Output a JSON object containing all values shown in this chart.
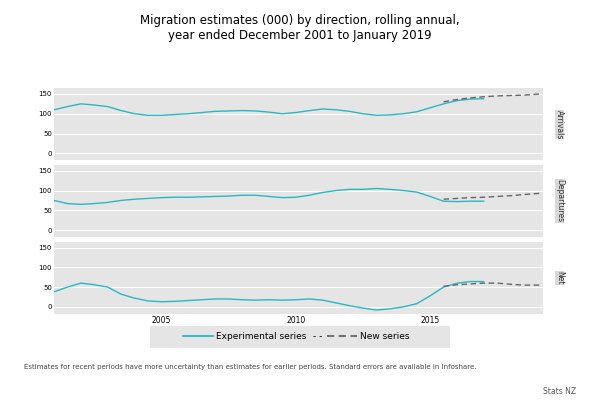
{
  "title": "Migration estimates (000) by direction, rolling annual,\nyear ended December 2001 to January 2019",
  "title_fontsize": 8.5,
  "panels": [
    "Arrivals",
    "Departures",
    "Net"
  ],
  "bg_color": "#E5E5E5",
  "label_bg_color": "#D8D8D8",
  "line_color": "#29B8C3",
  "new_series_color": "#666666",
  "xlim": [
    2001.0,
    2019.2
  ],
  "xticks": [
    2005,
    2010,
    2015
  ],
  "yticks": [
    0,
    50,
    100,
    150
  ],
  "footnote": "Estimates for recent periods have more uncertainty than estimates for earlier periods. Standard errors are available in Infoshare.",
  "source": "Stats NZ",
  "legend_label_exp": "Experimental series",
  "legend_label_new": "New series",
  "arrivals_exp_x": [
    2001.0,
    2001.5,
    2002.0,
    2002.5,
    2003.0,
    2003.5,
    2004.0,
    2004.5,
    2005.0,
    2005.5,
    2006.0,
    2006.5,
    2007.0,
    2007.5,
    2008.0,
    2008.5,
    2009.0,
    2009.5,
    2010.0,
    2010.5,
    2011.0,
    2011.5,
    2012.0,
    2012.5,
    2013.0,
    2013.5,
    2014.0,
    2014.5,
    2015.0,
    2015.5,
    2016.0,
    2016.5,
    2017.0
  ],
  "arrivals_exp_y": [
    110,
    118,
    125,
    122,
    118,
    108,
    100,
    96,
    96,
    98,
    100,
    103,
    106,
    107,
    108,
    107,
    104,
    100,
    103,
    108,
    112,
    110,
    106,
    100,
    96,
    97,
    100,
    105,
    115,
    125,
    133,
    137,
    138
  ],
  "arrivals_new_x": [
    2015.5,
    2016.0,
    2016.5,
    2017.0,
    2017.5,
    2018.0,
    2018.5,
    2019.1
  ],
  "arrivals_new_y": [
    130,
    136,
    140,
    143,
    145,
    146,
    147,
    150
  ],
  "departures_exp_x": [
    2001.0,
    2001.5,
    2002.0,
    2002.5,
    2003.0,
    2003.5,
    2004.0,
    2004.5,
    2005.0,
    2005.5,
    2006.0,
    2006.5,
    2007.0,
    2007.5,
    2008.0,
    2008.5,
    2009.0,
    2009.5,
    2010.0,
    2010.5,
    2011.0,
    2011.5,
    2012.0,
    2012.5,
    2013.0,
    2013.5,
    2014.0,
    2014.5,
    2015.0,
    2015.5,
    2016.0,
    2016.5,
    2017.0
  ],
  "departures_exp_y": [
    75,
    67,
    65,
    67,
    70,
    75,
    78,
    80,
    82,
    83,
    83,
    84,
    85,
    86,
    88,
    88,
    85,
    82,
    83,
    88,
    95,
    100,
    103,
    103,
    105,
    103,
    100,
    96,
    85,
    73,
    72,
    73,
    73
  ],
  "departures_new_x": [
    2015.5,
    2016.0,
    2016.5,
    2017.0,
    2017.5,
    2018.0,
    2018.5,
    2019.1
  ],
  "departures_new_y": [
    78,
    80,
    82,
    83,
    85,
    87,
    90,
    93
  ],
  "net_exp_x": [
    2001.0,
    2001.5,
    2002.0,
    2002.5,
    2003.0,
    2003.5,
    2004.0,
    2004.5,
    2005.0,
    2005.5,
    2006.0,
    2006.5,
    2007.0,
    2007.5,
    2008.0,
    2008.5,
    2009.0,
    2009.5,
    2010.0,
    2010.5,
    2011.0,
    2011.5,
    2012.0,
    2012.5,
    2013.0,
    2013.5,
    2014.0,
    2014.5,
    2015.0,
    2015.5,
    2016.0,
    2016.5,
    2017.0
  ],
  "net_exp_y": [
    38,
    50,
    60,
    56,
    50,
    32,
    22,
    15,
    13,
    14,
    16,
    18,
    20,
    20,
    18,
    17,
    18,
    17,
    18,
    20,
    17,
    10,
    3,
    -3,
    -8,
    -5,
    0,
    8,
    28,
    50,
    60,
    64,
    64
  ],
  "net_new_x": [
    2015.5,
    2016.0,
    2016.5,
    2017.0,
    2017.5,
    2018.0,
    2018.5,
    2019.1
  ],
  "net_new_y": [
    52,
    56,
    58,
    60,
    60,
    57,
    55,
    55
  ]
}
